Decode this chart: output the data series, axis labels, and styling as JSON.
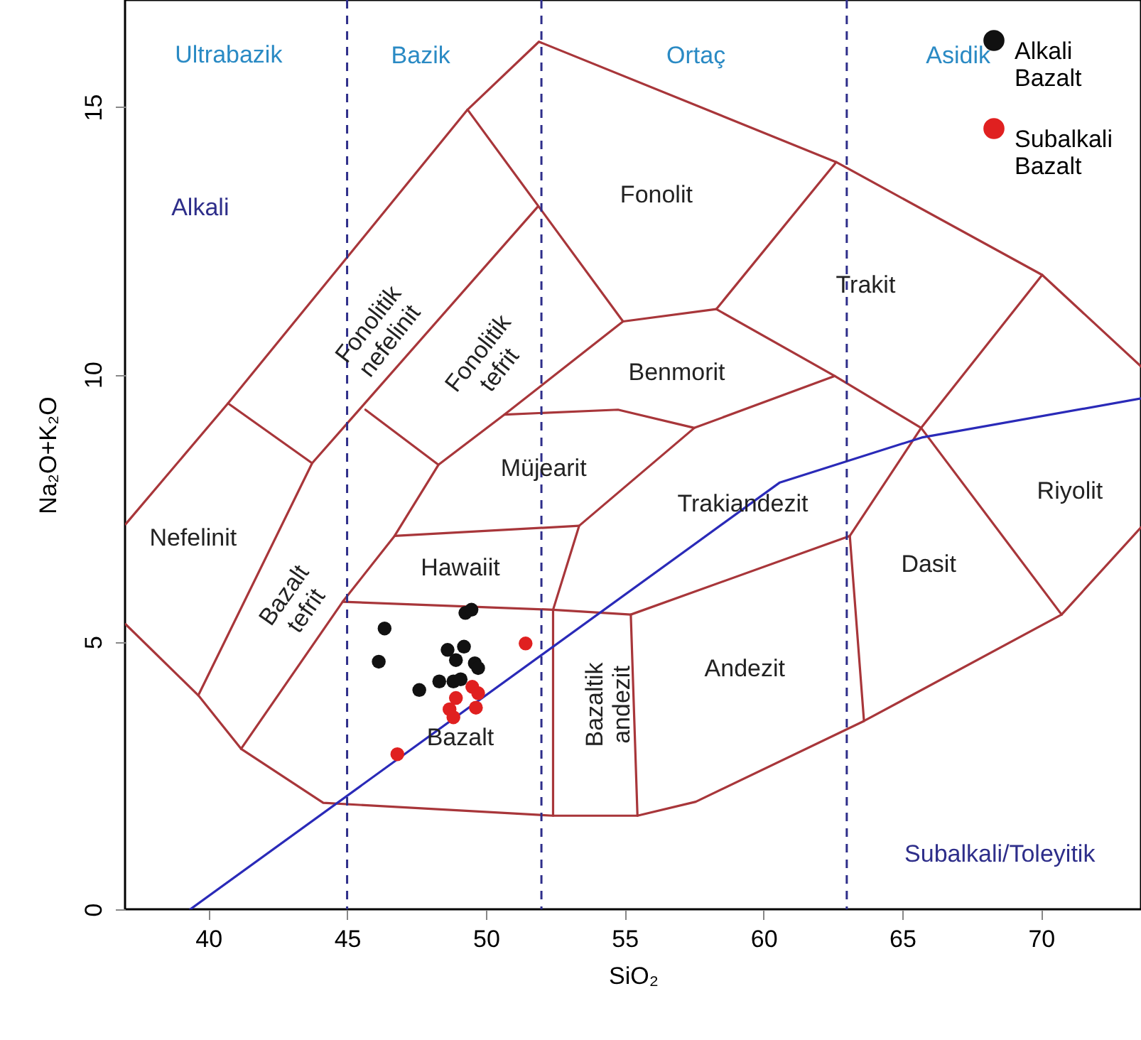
{
  "chart_data": {
    "type": "scatter",
    "xlabel": "SiO₂",
    "ylabel": "Na₂O+K₂O",
    "xlim": [
      37,
      73.6
    ],
    "ylim": [
      0,
      17
    ],
    "xticks": [
      40,
      45,
      50,
      55,
      60,
      65,
      70
    ],
    "yticks": [
      0,
      5,
      10,
      15
    ],
    "grid": false,
    "legend": "top right",
    "series": [
      {
        "name": "Alkali Bazalt",
        "color": "#111111",
        "marker": "circle",
        "x": [
          46.35,
          46.14,
          49.26,
          49.48,
          48.62,
          49.21,
          48.92,
          49.6,
          49.72,
          48.32,
          48.83,
          49.09,
          47.6
        ],
        "values": [
          5.25,
          4.63,
          5.54,
          5.6,
          4.85,
          4.91,
          4.66,
          4.6,
          4.51,
          4.26,
          4.26,
          4.3,
          4.1
        ]
      },
      {
        "name": "Subalkali Bazalt",
        "color": "#e02020",
        "marker": "circle",
        "x": [
          51.43,
          49.51,
          49.72,
          48.92,
          49.64,
          48.69,
          48.83,
          46.81
        ],
        "values": [
          4.97,
          4.16,
          4.04,
          3.95,
          3.77,
          3.74,
          3.59,
          2.9
        ]
      },
      {
        "type": "line",
        "color": "#a8363a",
        "x": [
          37.02,
          40.71,
          49.34,
          51.91,
          62.62,
          70.04,
          73.6
        ],
        "values": [
          7.2,
          9.46,
          14.95,
          16.22,
          13.97,
          11.86,
          10.15
        ]
      },
      {
        "type": "line",
        "color": "#a8363a",
        "x": [
          37.02,
          39.64,
          41.18,
          44.14,
          52.42,
          55.46,
          57.56,
          63.62,
          70.74,
          73.6
        ],
        "values": [
          5.33,
          4.0,
          3.0,
          1.99,
          1.75,
          1.75,
          2.01,
          3.52,
          5.51,
          7.14
        ]
      },
      {
        "type": "line",
        "color": "#a8363a",
        "x": [
          40.71,
          43.74
        ],
        "values": [
          9.46,
          8.34
        ]
      },
      {
        "type": "line",
        "color": "#a8363a",
        "x": [
          39.64,
          43.74,
          51.86
        ],
        "values": [
          4.0,
          8.34,
          13.13
        ]
      },
      {
        "type": "line",
        "color": "#a8363a",
        "x": [
          49.34,
          54.94
        ],
        "values": [
          14.95,
          10.99
        ]
      },
      {
        "type": "line",
        "color": "#a8363a",
        "x": [
          45.66,
          48.29
        ],
        "values": [
          9.34,
          8.31
        ]
      },
      {
        "type": "line",
        "color": "#a8363a",
        "x": [
          41.18,
          44.84,
          46.71,
          48.29,
          50.67,
          54.94
        ],
        "values": [
          3.0,
          5.75,
          6.98,
          8.31,
          9.25,
          10.99
        ]
      },
      {
        "type": "line",
        "color": "#a8363a",
        "x": [
          46.71,
          53.36
        ],
        "values": [
          6.98,
          7.17
        ]
      },
      {
        "type": "line",
        "color": "#a8363a",
        "x": [
          44.84,
          52.42,
          55.22,
          63.11
        ],
        "values": [
          5.75,
          5.6,
          5.51,
          6.98
        ]
      },
      {
        "type": "line",
        "color": "#a8363a",
        "x": [
          57.51,
          53.36,
          52.42,
          52.42
        ],
        "values": [
          9.0,
          7.17,
          5.6,
          1.75
        ]
      },
      {
        "type": "line",
        "color": "#a8363a",
        "x": [
          55.22,
          55.46
        ],
        "values": [
          5.51,
          1.75
        ]
      },
      {
        "type": "line",
        "color": "#a8363a",
        "x": [
          63.11,
          63.62
        ],
        "values": [
          6.98,
          3.52
        ]
      },
      {
        "type": "line",
        "color": "#a8363a",
        "x": [
          63.11,
          65.68,
          70.04
        ],
        "values": [
          6.98,
          9.0,
          11.86
        ]
      },
      {
        "type": "line",
        "color": "#a8363a",
        "x": [
          58.3,
          62.57,
          65.68,
          70.74
        ],
        "values": [
          11.22,
          9.97,
          9.0,
          5.51
        ]
      },
      {
        "type": "line",
        "color": "#a8363a",
        "x": [
          58.3,
          62.62
        ],
        "values": [
          11.22,
          13.97
        ]
      },
      {
        "type": "line",
        "color": "#a8363a",
        "x": [
          54.94,
          58.3
        ],
        "values": [
          10.99,
          11.22
        ]
      },
      {
        "type": "line",
        "color": "#a8363a",
        "x": [
          50.67,
          54.76,
          57.51,
          62.57
        ],
        "values": [
          9.25,
          9.34,
          9.0,
          9.97
        ]
      },
      {
        "type": "line",
        "color": "#2a2ab8",
        "x": [
          39.35,
          60.59,
          65.7,
          73.6
        ],
        "values": [
          0,
          7.98,
          8.82,
          9.55
        ]
      }
    ],
    "ref_lines": [
      {
        "axis": "x",
        "value": 45,
        "color": "#2e2e8a",
        "line_style": "dashed"
      },
      {
        "axis": "x",
        "value": 52,
        "color": "#2e2e8a",
        "line_style": "dashed"
      },
      {
        "axis": "x",
        "value": 63,
        "color": "#2e2e8a",
        "line_style": "dashed"
      }
    ],
    "annotations": [
      "Ultrabazik",
      "Bazik",
      "Ortaç",
      "Asidik",
      "Alkali",
      "Subalkali/Toleyitik",
      "Fonolit",
      "Trakit",
      "Fonolitik\nnefelinit",
      "Fonolitik\ntefrit",
      "Benmorit",
      "Müjearit",
      "Nefelinit",
      "Trakiandezit",
      "Riyolit",
      "Bazalt\ntefrit",
      "Hawaiit",
      "Dasit",
      "Andezit",
      "Bazaltik\nandezit",
      "Bazalt"
    ]
  }
}
